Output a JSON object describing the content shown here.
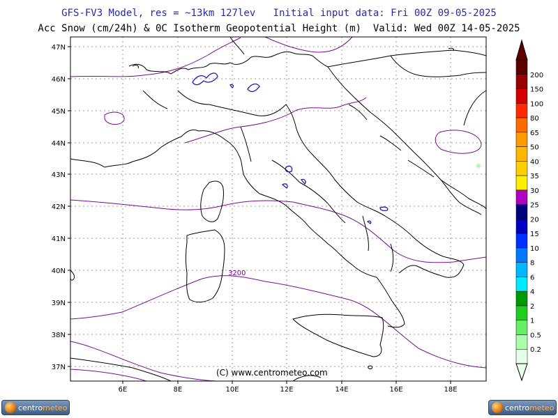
{
  "header": {
    "line1": "GFS-FV3 Model, res = ~13km 127lev   Initial input data: Fri 00Z 09-05-2025",
    "line2": "Acc Snow (cm/24h) & 0C Isotherm Geopotential Height (m)  Valid: Wed 00Z 14-05-2025"
  },
  "map": {
    "lat_labels": [
      "47N",
      "46N",
      "45N",
      "44N",
      "43N",
      "42N",
      "41N",
      "40N",
      "39N",
      "38N",
      "37N"
    ],
    "lon_labels": [
      "6E",
      "8E",
      "10E",
      "12E",
      "14E",
      "16E",
      "18E"
    ],
    "contour_label": "3200",
    "copyright": "(C)  www.centrometeo.com",
    "colors": {
      "border": "#000000",
      "isotherm": "#7a0a96",
      "snow": "#1b1bb4",
      "grid": "#999999"
    }
  },
  "colorbar": {
    "labels": [
      "200",
      "150",
      "100",
      "80",
      "65",
      "50",
      "40",
      "35",
      "30",
      "25",
      "20",
      "15",
      "10",
      "8",
      "6",
      "4",
      "2",
      "1",
      "0.5",
      "0.2"
    ],
    "colors": [
      "#5c0000",
      "#9b0000",
      "#d40000",
      "#ff2a00",
      "#ff6a00",
      "#ff9a00",
      "#ffb800",
      "#ffd000",
      "#ffee00",
      "#b000c0",
      "#00007a",
      "#0000c0",
      "#0030ff",
      "#0078ff",
      "#00b8ff",
      "#00eaff",
      "#009900",
      "#22cc22",
      "#66ee66",
      "#aaffaa",
      "#e6ffe6"
    ]
  },
  "logos": {
    "word_a": "centro",
    "word_b": "meteo"
  }
}
